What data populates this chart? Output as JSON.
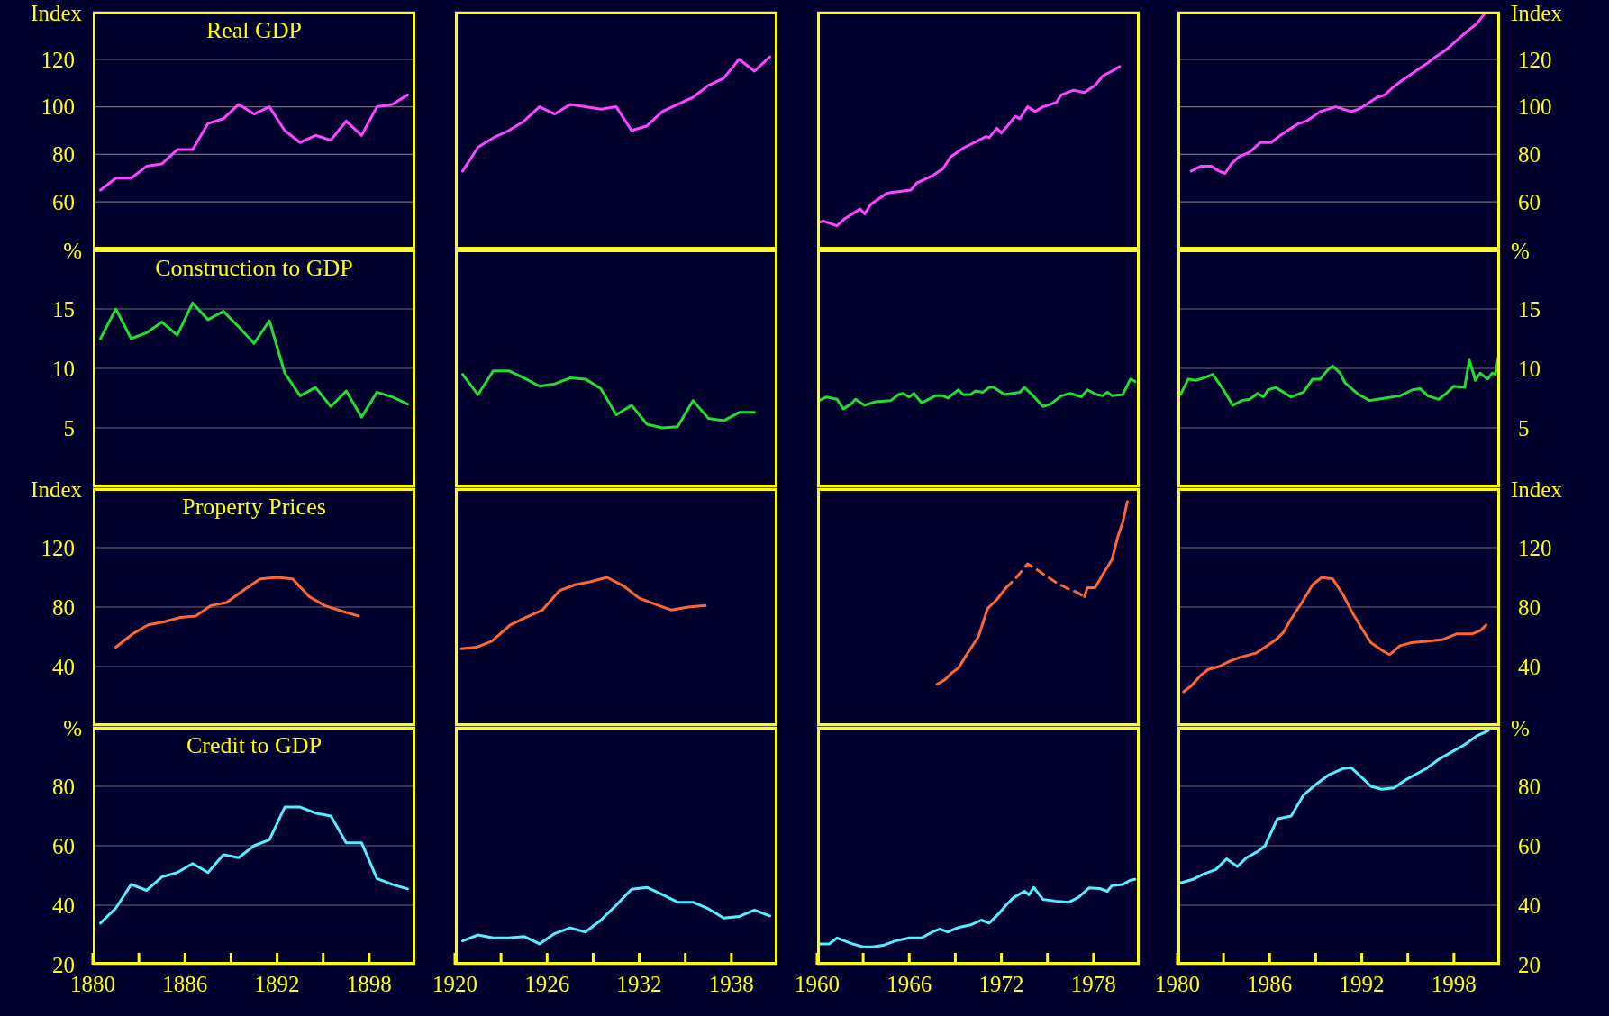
{
  "chart_data": [
    {
      "type": "line",
      "title": "Real GDP",
      "ylabel": "Index",
      "xlim": [
        1880,
        1901
      ],
      "ylim": [
        40,
        140
      ],
      "yticks": [
        60,
        80,
        100,
        120
      ],
      "grid": "y",
      "marker": "none",
      "tick_labels": "y",
      "x": [
        1880.5,
        1881.5,
        1882.5,
        1883.5,
        1884.5,
        1885.5,
        1886.5,
        1887.5,
        1888.5,
        1889.5,
        1890.5,
        1891.5,
        1892.5,
        1893.5,
        1894.5,
        1895.5,
        1896.5,
        1897.5,
        1898.5,
        1899.5,
        1900.5
      ],
      "series": [
        {
          "color": "#ff44ff",
          "values": [
            65,
            70,
            70,
            75,
            76,
            82,
            82,
            93,
            95,
            101,
            97,
            100,
            90,
            85,
            88,
            86,
            94,
            88,
            100,
            101,
            105
          ]
        }
      ]
    },
    {
      "type": "line",
      "xlim": [
        1920,
        1941
      ],
      "ylim": [
        40,
        140
      ],
      "yticks": [
        60,
        80,
        100,
        120
      ],
      "grid": "y",
      "marker": "none",
      "tick_labels": false,
      "x": [
        1920.5,
        1921.5,
        1922.5,
        1923.5,
        1924.5,
        1925.5,
        1926.5,
        1927.5,
        1928.5,
        1929.5,
        1930.5,
        1931.5,
        1932.5,
        1933.5,
        1934.5,
        1935.5,
        1936.5,
        1937.5,
        1938.5,
        1939.5,
        1940.5
      ],
      "series": [
        {
          "color": "#ff44ff",
          "values": [
            73,
            83,
            87,
            90,
            94,
            100,
            97,
            101,
            100,
            99,
            100,
            90,
            92,
            98,
            101,
            104,
            109,
            112,
            120,
            115,
            121
          ]
        }
      ]
    },
    {
      "type": "line",
      "xlim": [
        1960,
        1981
      ],
      "ylim": [
        40,
        140
      ],
      "yticks": [
        60,
        80,
        100,
        120
      ],
      "grid": "y",
      "marker": "none",
      "tick_labels": false,
      "x": [
        1960,
        1960.4,
        1961.3,
        1961.8,
        1962.8,
        1963.1,
        1963.5,
        1964.5,
        1964.8,
        1966.1,
        1966.5,
        1967.5,
        1968.2,
        1968.7,
        1969.5,
        1971,
        1971.2,
        1971.7,
        1972,
        1972.4,
        1972.9,
        1973.2,
        1973.7,
        1974.2,
        1974.7,
        1975.2,
        1975.6,
        1975.9,
        1976.7,
        1977.4,
        1978.1,
        1978.6,
        1979.2,
        1979.7
      ],
      "series": [
        {
          "color": "#ff44ff",
          "values": [
            51,
            52,
            50,
            53,
            57,
            55,
            59,
            63.5,
            64,
            65,
            68,
            71,
            74,
            79,
            82.6,
            87.5,
            87,
            91,
            89,
            92,
            96,
            95,
            100,
            98,
            100,
            101,
            102,
            105,
            107,
            106,
            109,
            113,
            115,
            117
          ]
        }
      ]
    },
    {
      "type": "line",
      "xlim": [
        1980,
        2001
      ],
      "y2lim": [
        40,
        140
      ],
      "y2ticks": [
        60,
        80,
        100,
        120
      ],
      "y2label": "Index",
      "grid": "y",
      "marker": "none",
      "tick_labels": "y",
      "x": [
        1980.9,
        1981.5,
        1982.2,
        1982.7,
        1983.1,
        1983.5,
        1984,
        1984.7,
        1985.4,
        1986.1,
        1986.7,
        1987.4,
        1987.9,
        1988.4,
        1989.3,
        1990.3,
        1991.3,
        1991.8,
        1992.3,
        1993,
        1993.5,
        1994,
        1994.6,
        1995.5,
        1996.2,
        1996.8,
        1997.5,
        1998.2,
        1998.9,
        1999.5,
        2000.1
      ],
      "series": [
        {
          "axis": "y2",
          "color": "#ff44ff",
          "values": [
            73,
            75,
            75,
            73,
            72,
            76,
            79,
            81,
            85,
            85,
            88,
            91,
            93,
            94,
            98,
            100,
            98,
            99,
            101,
            104,
            105,
            108,
            111,
            115,
            118,
            121,
            124,
            128,
            132,
            135,
            140
          ]
        }
      ]
    },
    {
      "type": "line",
      "title": "Construction to GDP",
      "ylabel": "%",
      "xlim": [
        1880,
        1901
      ],
      "ylim": [
        0,
        20
      ],
      "yticks": [
        5,
        10,
        15
      ],
      "grid": "y",
      "marker": "none",
      "tick_labels": "y",
      "x": [
        1880.5,
        1881.5,
        1882.5,
        1883.5,
        1884.5,
        1885.5,
        1886.5,
        1887.5,
        1888.5,
        1889.5,
        1890.5,
        1891.5,
        1892.5,
        1893.5,
        1894.5,
        1895.5,
        1896.5,
        1897.5,
        1898.5,
        1899.5,
        1900.5
      ],
      "series": [
        {
          "color": "#22dd33",
          "values": [
            12.5,
            15,
            12.5,
            13,
            13.9,
            12.8,
            15.5,
            14.1,
            14.8,
            13.5,
            12.1,
            14,
            9.6,
            7.7,
            8.4,
            6.8,
            8.1,
            5.9,
            8,
            7.6,
            7
          ]
        }
      ]
    },
    {
      "type": "line",
      "xlim": [
        1920,
        1941
      ],
      "ylim": [
        0,
        20
      ],
      "yticks": [
        5,
        10,
        15
      ],
      "grid": "y",
      "marker": "none",
      "tick_labels": false,
      "x": [
        1920.5,
        1921.5,
        1922.5,
        1923.5,
        1924.5,
        1925.5,
        1926.5,
        1927.5,
        1928.5,
        1929.5,
        1930.5,
        1931.5,
        1932.5,
        1933.5,
        1934.5,
        1935.5,
        1936.5,
        1937.5,
        1938.5,
        1939.5
      ],
      "series": [
        {
          "color": "#22dd33",
          "values": [
            9.5,
            7.8,
            9.8,
            9.8,
            9.2,
            8.5,
            8.7,
            9.2,
            9.1,
            8.3,
            6.1,
            6.9,
            5.3,
            5,
            5.1,
            7.3,
            5.8,
            5.6,
            6.3,
            6.3
          ]
        }
      ]
    },
    {
      "type": "line",
      "xlim": [
        1960,
        1981
      ],
      "ylim": [
        0,
        20
      ],
      "yticks": [
        5,
        10,
        15
      ],
      "grid": "y",
      "marker": "none",
      "tick_labels": false,
      "x": [
        1960,
        1960.6,
        1961.3,
        1961.7,
        1962.2,
        1962.5,
        1963.1,
        1963.8,
        1964.8,
        1965.3,
        1965.6,
        1966,
        1966.3,
        1966.8,
        1967.1,
        1967.7,
        1968.2,
        1968.5,
        1969.2,
        1969.5,
        1970,
        1970.3,
        1970.8,
        1971.2,
        1971.5,
        1972.2,
        1973.2,
        1973.5,
        1974,
        1974.7,
        1975.2,
        1975.9,
        1976.5,
        1977.2,
        1977.6,
        1978.2,
        1978.6,
        1978.9,
        1979.2,
        1979.9,
        1980.4,
        1980.7
      ],
      "series": [
        {
          "color": "#22dd33",
          "values": [
            7.2,
            7.6,
            7.4,
            6.6,
            7,
            7.4,
            6.9,
            7.2,
            7.3,
            7.8,
            7.9,
            7.6,
            7.9,
            7.1,
            7.3,
            7.7,
            7.7,
            7.5,
            8.2,
            7.8,
            7.8,
            8.1,
            8,
            8.4,
            8.4,
            7.8,
            8,
            8.4,
            7.8,
            6.8,
            7,
            7.7,
            7.9,
            7.6,
            8.2,
            7.8,
            7.7,
            8,
            7.7,
            7.8,
            9.1,
            8.9
          ]
        }
      ]
    },
    {
      "type": "line",
      "xlim": [
        1980,
        2001
      ],
      "y2lim": [
        0,
        20
      ],
      "y2ticks": [
        5,
        10,
        15
      ],
      "y2label": "%",
      "grid": "y",
      "marker": "none",
      "tick_labels": "y",
      "x": [
        1980.2,
        1980.7,
        1981.2,
        1981.7,
        1982.3,
        1983,
        1983.6,
        1984.2,
        1984.7,
        1985.2,
        1985.6,
        1985.9,
        1986.4,
        1987.4,
        1988.2,
        1988.8,
        1989.3,
        1989.8,
        1990.1,
        1990.6,
        1990.9,
        1991.8,
        1992.5,
        1993.5,
        1994.5,
        1995.3,
        1995.8,
        1996.3,
        1997,
        1997.5,
        1998,
        1998.7,
        1999,
        1999.4,
        1999.7,
        2000.2,
        2000.5,
        2000.7,
        2000.9
      ],
      "series": [
        {
          "axis": "y2",
          "color": "#22dd33",
          "values": [
            7.8,
            9.1,
            9,
            9.2,
            9.5,
            8.2,
            6.9,
            7.3,
            7.4,
            7.9,
            7.6,
            8.2,
            8.4,
            7.6,
            8,
            9.1,
            9.1,
            9.9,
            10.2,
            9.6,
            8.8,
            7.8,
            7.3,
            7.5,
            7.7,
            8.2,
            8.3,
            7.7,
            7.4,
            7.9,
            8.5,
            8.4,
            10.7,
            9,
            9.6,
            9.1,
            9.6,
            9.5,
            11
          ]
        }
      ]
    },
    {
      "type": "line",
      "title": "Property Prices",
      "ylabel": "Index",
      "xlim": [
        1880,
        1901
      ],
      "ylim": [
        0,
        160
      ],
      "yticks": [
        40,
        80,
        120
      ],
      "grid": "y",
      "marker": "none",
      "tick_labels": "y",
      "x": [
        1881.5,
        1882.6,
        1883.6,
        1884.6,
        1885.7,
        1886.7,
        1887.7,
        1888.7,
        1889.9,
        1890.9,
        1892,
        1893,
        1894.1,
        1895.1,
        1896.3,
        1897.3
      ],
      "series": [
        {
          "color": "#ff6633",
          "values": [
            53,
            62,
            68,
            70,
            73,
            74,
            81,
            83,
            92,
            99,
            100,
            99,
            87,
            81,
            77,
            74
          ]
        }
      ]
    },
    {
      "type": "line",
      "xlim": [
        1920,
        1941
      ],
      "ylim": [
        0,
        160
      ],
      "yticks": [
        40,
        80,
        120
      ],
      "grid": "y",
      "marker": "none",
      "tick_labels": false,
      "x": [
        1920.4,
        1921.4,
        1922.4,
        1923.6,
        1924.6,
        1925.7,
        1926.8,
        1927.8,
        1928.8,
        1929.9,
        1931,
        1932,
        1933,
        1934.1,
        1935.2,
        1936.3
      ],
      "series": [
        {
          "color": "#ff6633",
          "values": [
            52,
            53,
            57,
            68,
            73,
            78,
            91,
            95,
            97,
            100,
            94,
            86,
            82,
            78,
            80,
            81
          ]
        }
      ]
    },
    {
      "type": "line",
      "xlim": [
        1960,
        1981
      ],
      "ylim": [
        0,
        160
      ],
      "yticks": [
        40,
        80,
        120
      ],
      "grid": "y",
      "marker": "none",
      "tick_labels": false,
      "series": [
        {
          "color": "#ff6633",
          "x": [
            1967.8,
            1968.3,
            1968.8,
            1969.2,
            1969.8,
            1970.5,
            1971.1,
            1971.7,
            1972.3,
            1975,
            1977.4,
            1977.6,
            1978.1,
            1978.6,
            1979.2,
            1979.6,
            1979.9,
            1980.2
          ],
          "values": [
            28,
            31,
            36,
            39,
            49,
            60,
            79,
            85,
            93,
            null,
            87,
            93,
            93,
            102,
            112,
            128,
            137,
            151
          ]
        },
        {
          "color": "#ff6633",
          "line_style": "dashed",
          "x": [
            1972.3,
            1972.9,
            1973.7,
            1974.2,
            1974.9,
            1975.5,
            1976.2,
            1976.9,
            1977.4
          ],
          "values": [
            93,
            99,
            109,
            106,
            101,
            97,
            93,
            90,
            87
          ]
        }
      ]
    },
    {
      "type": "line",
      "xlim": [
        1980,
        2001
      ],
      "y2lim": [
        0,
        160
      ],
      "y2ticks": [
        40,
        80,
        120
      ],
      "y2label": "Index",
      "grid": "y",
      "marker": "none",
      "tick_labels": "y",
      "x": [
        1980.4,
        1980.9,
        1981.5,
        1982,
        1982.7,
        1983.4,
        1984,
        1985.1,
        1985.7,
        1986.4,
        1986.9,
        1987.4,
        1988.1,
        1988.8,
        1989.4,
        1990.1,
        1990.8,
        1991.4,
        1992.1,
        1992.6,
        1993.3,
        1993.8,
        1994.5,
        1995.2,
        1996.2,
        1997.2,
        1998.2,
        1999.2,
        1999.7,
        2000.1
      ],
      "series": [
        {
          "axis": "y2",
          "color": "#ff6633",
          "values": [
            23,
            27,
            34,
            38,
            40,
            43.5,
            46,
            49,
            53,
            58,
            63,
            72,
            83,
            95,
            100,
            99,
            88,
            76,
            64,
            56,
            51,
            48,
            54,
            56,
            57,
            58,
            62,
            62,
            64,
            68
          ]
        }
      ]
    },
    {
      "type": "line",
      "title": "Credit to GDP",
      "ylabel": "%",
      "xlim": [
        1880,
        1901
      ],
      "xticks": [
        1880,
        {
          "value": 1883,
          "label": null
        },
        1886,
        {
          "value": 1889,
          "label": null
        },
        1892,
        {
          "value": 1895,
          "label": null
        },
        1898
      ],
      "ylim": [
        20,
        100
      ],
      "yticks": [
        20,
        40,
        60,
        80
      ],
      "grid": "y",
      "marker": "none",
      "x": [
        1880.5,
        1881.5,
        1882.5,
        1883.5,
        1884.5,
        1885.5,
        1886.5,
        1887.5,
        1888.5,
        1889.5,
        1890.5,
        1891.5,
        1892.5,
        1893.5,
        1894.5,
        1895.5,
        1896.5,
        1897.5,
        1898.5,
        1899.5,
        1900.5
      ],
      "series": [
        {
          "color": "#55eeff",
          "values": [
            34,
            39,
            47,
            45,
            49.5,
            51,
            54,
            51,
            57,
            56,
            60,
            62,
            73,
            73,
            71,
            70,
            61,
            61,
            49,
            47,
            45.5
          ]
        }
      ]
    },
    {
      "type": "line",
      "xlim": [
        1920,
        1941
      ],
      "xticks": [
        1920,
        {
          "value": 1923,
          "label": null
        },
        1926,
        {
          "value": 1929,
          "label": null
        },
        1932,
        {
          "value": 1935,
          "label": null
        },
        1938
      ],
      "ylim": [
        20,
        100
      ],
      "yticks": [
        20,
        40,
        60,
        80
      ],
      "grid": "y",
      "marker": "none",
      "tick_labels": "x",
      "x": [
        1920.5,
        1921.5,
        1922.5,
        1923.5,
        1924.5,
        1925.5,
        1926.5,
        1927.5,
        1928.5,
        1929.5,
        1930.5,
        1931.5,
        1932.5,
        1933.5,
        1934.5,
        1935.5,
        1936.5,
        1937.5,
        1938.5,
        1939.5,
        1940.5
      ],
      "series": [
        {
          "color": "#55eeff",
          "values": [
            28,
            30,
            29,
            29,
            29.5,
            27,
            30.5,
            32.4,
            31,
            35,
            40,
            45.4,
            46,
            43.6,
            41,
            41,
            38.8,
            35.7,
            36.2,
            38.4,
            36.4
          ]
        }
      ]
    },
    {
      "type": "line",
      "xlim": [
        1960,
        1981
      ],
      "xticks": [
        1960,
        {
          "value": 1963,
          "label": null
        },
        1966,
        {
          "value": 1969,
          "label": null
        },
        1972,
        {
          "value": 1975,
          "label": null
        },
        1978
      ],
      "ylim": [
        20,
        100
      ],
      "yticks": [
        20,
        40,
        60,
        80
      ],
      "grid": "y",
      "marker": "none",
      "tick_labels": "x",
      "x": [
        1960,
        1960.8,
        1961.3,
        1962.3,
        1963,
        1963.6,
        1964.3,
        1965.1,
        1966,
        1966.8,
        1967.5,
        1968,
        1968.5,
        1969.2,
        1970,
        1970.7,
        1971.2,
        1971.8,
        1972.3,
        1972.8,
        1973.5,
        1973.8,
        1974.1,
        1974.7,
        1975.5,
        1976.4,
        1977,
        1977.7,
        1978.4,
        1978.9,
        1979.2,
        1979.9,
        1980.4,
        1980.7
      ],
      "series": [
        {
          "color": "#55eeff",
          "values": [
            27,
            27,
            29,
            27,
            26,
            26,
            26.5,
            28,
            29,
            29,
            31,
            32,
            31,
            32.5,
            33.4,
            35,
            34,
            37,
            40,
            42.6,
            44.7,
            43.5,
            46,
            42,
            41.4,
            41,
            42.6,
            45.8,
            45.6,
            44.7,
            46.6,
            47,
            48.4,
            48.7
          ]
        }
      ]
    },
    {
      "type": "line",
      "xlim": [
        1980,
        2001
      ],
      "xticks": [
        1980,
        {
          "value": 1983,
          "label": null
        },
        1986,
        {
          "value": 1989,
          "label": null
        },
        1992,
        {
          "value": 1995,
          "label": null
        },
        1998
      ],
      "y2lim": [
        20,
        100
      ],
      "y2ticks": [
        20,
        40,
        60,
        80
      ],
      "y2label": "%",
      "grid": "y",
      "marker": "none",
      "x": [
        1980.2,
        1981,
        1981.7,
        1982.5,
        1983.2,
        1983.9,
        1984.5,
        1985.2,
        1985.7,
        1986.5,
        1987.4,
        1988.2,
        1989.1,
        1989.9,
        1990.8,
        1991.3,
        1992,
        1992.6,
        1993.3,
        1994.1,
        1994.8,
        1995.5,
        1996.2,
        1997,
        1997.8,
        1998.7,
        1999.5,
        2000.2,
        2000.5
      ],
      "series": [
        {
          "axis": "y2",
          "color": "#55eeff",
          "values": [
            47.5,
            48.7,
            50.5,
            52,
            55.6,
            53,
            56,
            58,
            60,
            69,
            70,
            77,
            81,
            84,
            86,
            86.3,
            83,
            80,
            79,
            79.5,
            82,
            84,
            86,
            89,
            91.4,
            94,
            97,
            98.6,
            100
          ]
        }
      ]
    }
  ]
}
